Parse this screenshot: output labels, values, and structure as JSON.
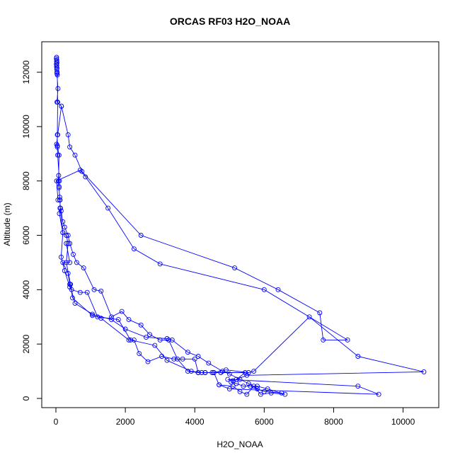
{
  "chart_data": {
    "type": "line",
    "title": "ORCAS RF03 H2O_NOAA",
    "xlabel": "H2O_NOAA",
    "ylabel": "Altitude (m)",
    "xlim": [
      0,
      10600
    ],
    "ylim": [
      0,
      12600
    ],
    "xticks": [
      0,
      2000,
      4000,
      6000,
      8000,
      10000
    ],
    "yticks": [
      0,
      2000,
      4000,
      6000,
      8000,
      10000,
      12000
    ],
    "series_color": "#0000ff",
    "series": [
      {
        "name": "H2O_NOAA",
        "marker": "open-circle",
        "points": [
          [
            20,
            12550
          ],
          [
            15,
            12500
          ],
          [
            25,
            12450
          ],
          [
            20,
            12400
          ],
          [
            30,
            12350
          ],
          [
            15,
            12300
          ],
          [
            25,
            12250
          ],
          [
            20,
            12200
          ],
          [
            30,
            12150
          ],
          [
            25,
            12100
          ],
          [
            35,
            12000
          ],
          [
            30,
            11950
          ],
          [
            60,
            11400
          ],
          [
            30,
            10900
          ],
          [
            160,
            10750
          ],
          [
            50,
            9700
          ],
          [
            20,
            9350
          ],
          [
            40,
            9250
          ],
          [
            50,
            8950
          ],
          [
            100,
            8000
          ],
          [
            90,
            7800
          ],
          [
            110,
            7300
          ],
          [
            130,
            7000
          ],
          [
            100,
            6800
          ],
          [
            200,
            6100
          ],
          [
            300,
            6000
          ],
          [
            350,
            5700
          ],
          [
            300,
            5000
          ],
          [
            420,
            4200
          ],
          [
            480,
            3700
          ],
          [
            1050,
            3050
          ],
          [
            1300,
            2950
          ],
          [
            2100,
            2150
          ],
          [
            2250,
            2150
          ],
          [
            2400,
            1650
          ],
          [
            2650,
            1350
          ],
          [
            3050,
            1550
          ],
          [
            3400,
            1450
          ],
          [
            3650,
            1450
          ],
          [
            4000,
            1450
          ],
          [
            4100,
            950
          ],
          [
            4300,
            950
          ],
          [
            4550,
            950
          ],
          [
            4700,
            500
          ],
          [
            5100,
            450
          ],
          [
            5300,
            250
          ],
          [
            5500,
            150
          ],
          [
            5700,
            450
          ],
          [
            5900,
            150
          ],
          [
            6200,
            200
          ],
          [
            6600,
            150
          ],
          [
            6100,
            350
          ],
          [
            5800,
            450
          ],
          [
            5600,
            450
          ],
          [
            5400,
            450
          ],
          [
            5200,
            550
          ],
          [
            5050,
            600
          ],
          [
            5200,
            700
          ],
          [
            5450,
            950
          ],
          [
            4750,
            950
          ],
          [
            4500,
            950
          ],
          [
            4300,
            950
          ],
          [
            4100,
            950
          ],
          [
            3800,
            1000
          ],
          [
            3500,
            1450
          ],
          [
            3250,
            2150
          ],
          [
            3000,
            2150
          ],
          [
            2700,
            2350
          ],
          [
            2450,
            2700
          ],
          [
            2100,
            2900
          ],
          [
            1900,
            3200
          ],
          [
            1600,
            3000
          ],
          [
            1300,
            3950
          ],
          [
            1100,
            4000
          ],
          [
            800,
            4800
          ],
          [
            600,
            5000
          ],
          [
            500,
            5300
          ],
          [
            400,
            5700
          ],
          [
            350,
            6000
          ],
          [
            250,
            6300
          ],
          [
            200,
            6500
          ],
          [
            150,
            6900
          ],
          [
            120,
            7000
          ],
          [
            120,
            7300
          ],
          [
            110,
            7400
          ],
          [
            90,
            7750
          ],
          [
            70,
            8000
          ],
          [
            80,
            8200
          ],
          [
            90,
            8950
          ],
          [
            40,
            9300
          ],
          [
            40,
            9700
          ],
          [
            50,
            10900
          ],
          [
            40,
            11900
          ],
          [
            30,
            12000
          ]
        ]
      },
      {
        "name": "H2O_NOAA",
        "marker": "open-circle",
        "points": [
          [
            160,
            10750
          ],
          [
            350,
            9700
          ],
          [
            400,
            9250
          ],
          [
            550,
            8950
          ],
          [
            750,
            8350
          ],
          [
            2450,
            6000
          ],
          [
            5150,
            4800
          ],
          [
            6400,
            4000
          ],
          [
            7600,
            3150
          ],
          [
            7700,
            2150
          ],
          [
            8400,
            2150
          ],
          [
            6000,
            4000
          ],
          [
            3000,
            4950
          ],
          [
            2250,
            5500
          ],
          [
            1500,
            7000
          ],
          [
            850,
            8150
          ],
          [
            700,
            8400
          ],
          [
            20,
            8000
          ],
          [
            60,
            7300
          ]
        ]
      },
      {
        "name": "H2O_NOAA",
        "marker": "open-circle",
        "points": [
          [
            120,
            7000
          ],
          [
            200,
            6100
          ],
          [
            150,
            5200
          ],
          [
            250,
            4700
          ],
          [
            400,
            4100
          ],
          [
            450,
            4000
          ],
          [
            700,
            3900
          ],
          [
            900,
            3900
          ],
          [
            1200,
            3000
          ],
          [
            1800,
            2900
          ],
          [
            2150,
            2150
          ],
          [
            2850,
            1950
          ],
          [
            3200,
            1400
          ],
          [
            3900,
            1000
          ],
          [
            4200,
            950
          ],
          [
            4550,
            950
          ],
          [
            4900,
            1050
          ],
          [
            5550,
            950
          ],
          [
            5700,
            1000
          ],
          [
            7300,
            3000
          ],
          [
            8700,
            1550
          ],
          [
            10600,
            980
          ],
          [
            5500,
            850
          ],
          [
            5100,
            650
          ],
          [
            4950,
            700
          ],
          [
            8700,
            450
          ],
          [
            9300,
            150
          ],
          [
            5000,
            350
          ],
          [
            4700,
            500
          ]
        ]
      },
      {
        "name": "H2O_NOAA",
        "marker": "open-circle",
        "points": [
          [
            300,
            5700
          ],
          [
            400,
            5000
          ],
          [
            200,
            5000
          ],
          [
            350,
            4600
          ],
          [
            400,
            4200
          ],
          [
            550,
            3500
          ],
          [
            1050,
            3100
          ],
          [
            1600,
            2900
          ],
          [
            2000,
            2550
          ],
          [
            2600,
            2250
          ],
          [
            3200,
            2200
          ],
          [
            3350,
            2150
          ],
          [
            3800,
            1700
          ],
          [
            4100,
            1550
          ],
          [
            4400,
            1300
          ],
          [
            4800,
            1000
          ],
          [
            5000,
            900
          ],
          [
            5300,
            700
          ],
          [
            5550,
            550
          ],
          [
            5800,
            350
          ],
          [
            6000,
            250
          ],
          [
            6500,
            200
          ]
        ]
      }
    ]
  }
}
